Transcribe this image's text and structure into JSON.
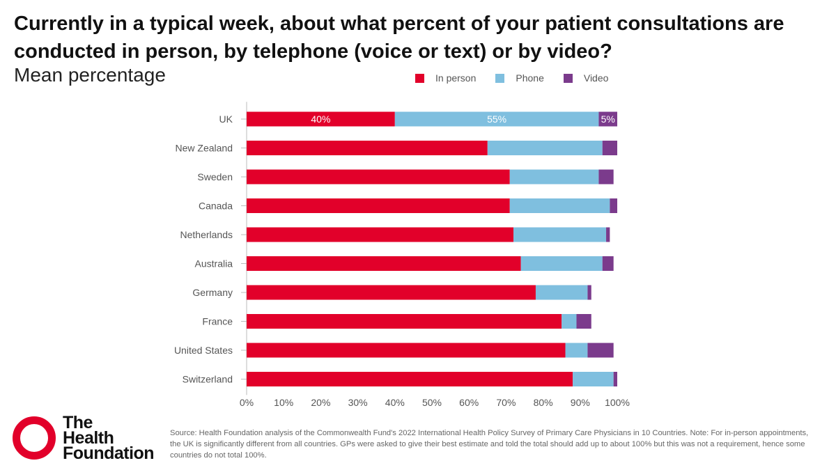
{
  "header": {
    "title": "Currently in a typical week, about what percent of your patient consultations are conducted in person, by telephone (voice or text) or by video?",
    "subtitle": "Mean percentage"
  },
  "legend": [
    {
      "label": "In person",
      "color": "#e2002a"
    },
    {
      "label": "Phone",
      "color": "#7fbfdf"
    },
    {
      "label": "Video",
      "color": "#7b3b8c"
    }
  ],
  "chart_data": {
    "type": "bar",
    "orientation": "horizontal",
    "stacked": true,
    "title": "Currently in a typical week, about what percent of your patient consultations are conducted in person, by telephone (voice or text) or by video?",
    "subtitle": "Mean percentage",
    "categories": [
      "UK",
      "New Zealand",
      "Sweden",
      "Canada",
      "Netherlands",
      "Australia",
      "Germany",
      "France",
      "United States",
      "Switzerland"
    ],
    "series": [
      {
        "name": "In person",
        "color": "#e2002a",
        "values": [
          40,
          65,
          71,
          71,
          72,
          74,
          78,
          85,
          86,
          88
        ]
      },
      {
        "name": "Phone",
        "color": "#7fbfdf",
        "values": [
          55,
          31,
          24,
          27,
          25,
          22,
          14,
          4,
          6,
          11
        ]
      },
      {
        "name": "Video",
        "color": "#7b3b8c",
        "values": [
          5,
          4,
          4,
          2,
          1,
          3,
          1,
          4,
          7,
          1
        ]
      }
    ],
    "data_labels": [
      {
        "category": "UK",
        "series": "In person",
        "text": "40%"
      },
      {
        "category": "UK",
        "series": "Phone",
        "text": "55%"
      },
      {
        "category": "UK",
        "series": "Video",
        "text": "5%"
      }
    ],
    "xlim": [
      0,
      100
    ],
    "xticks": [
      "0%",
      "10%",
      "20%",
      "30%",
      "40%",
      "50%",
      "60%",
      "70%",
      "80%",
      "90%",
      "100%"
    ],
    "legend_position": "top-right",
    "grid": false
  },
  "logo": {
    "line1": "The",
    "line2": "Health",
    "line3": "Foundation"
  },
  "source": "Source: Health Foundation analysis of the Commonwealth Fund's 2022 International Health Policy Survey of Primary Care Physicians in 10 Countries. Note: For in-person appointments, the UK is significantly different from all countries. GPs were asked to give their best estimate and told the total should add up to about 100% but this was not a requirement, hence some countries do not total 100%."
}
